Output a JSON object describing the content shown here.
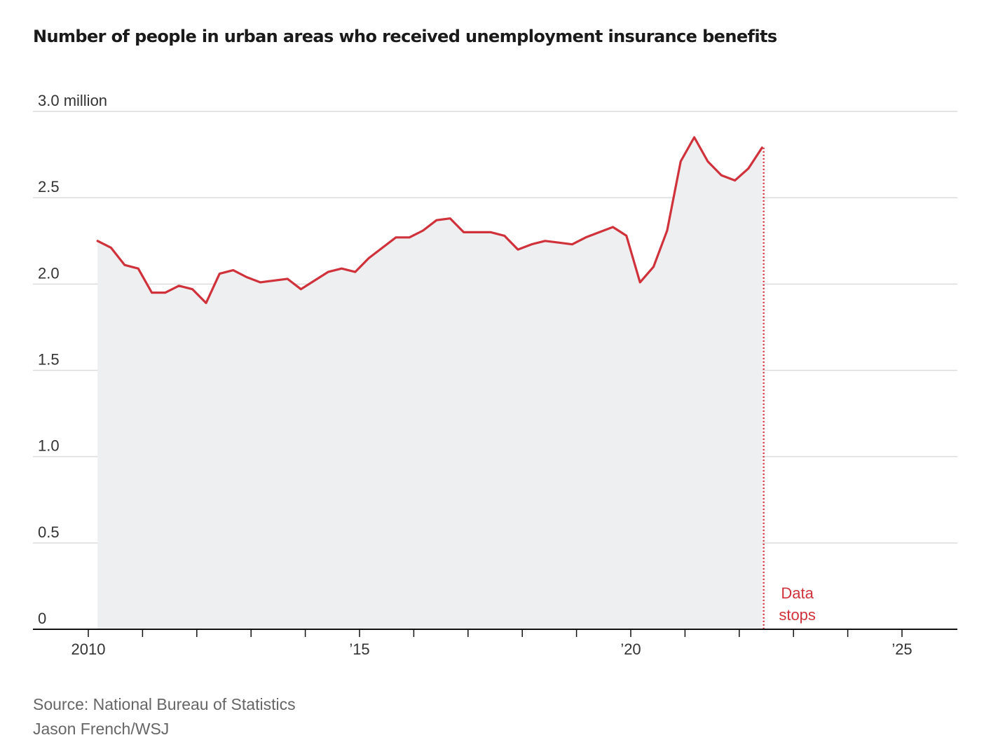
{
  "chart_data": {
    "type": "area",
    "title": "Number of people in urban areas who received unemployment insurance benefits",
    "unit": "million",
    "y_ticks": [
      {
        "value": 0,
        "label": "0"
      },
      {
        "value": 0.5,
        "label": "0.5"
      },
      {
        "value": 1.0,
        "label": "1.0"
      },
      {
        "value": 1.5,
        "label": "1.5"
      },
      {
        "value": 2.0,
        "label": "2.0"
      },
      {
        "value": 2.5,
        "label": "2.5"
      },
      {
        "value": 3.0,
        "label": "3.0 million"
      }
    ],
    "ylim": [
      0,
      3.0
    ],
    "xlim": [
      2009.0,
      2026.0
    ],
    "x_ticks": [
      {
        "value": 2010,
        "label": "2010"
      },
      {
        "value": 2015,
        "label": "’15"
      },
      {
        "value": 2020,
        "label": "’20"
      },
      {
        "value": 2025,
        "label": "’25"
      }
    ],
    "x_minor_ticks": [
      2011,
      2012,
      2013,
      2014,
      2016,
      2017,
      2018,
      2019,
      2021,
      2022,
      2023,
      2024
    ],
    "series": [
      {
        "name": "Urban unemployment insurance recipients",
        "color": "#d0323b",
        "fill": "#eeeff1",
        "x": [
          2010.17,
          2010.42,
          2010.67,
          2010.92,
          2011.17,
          2011.42,
          2011.67,
          2011.92,
          2012.17,
          2012.42,
          2012.67,
          2012.92,
          2013.17,
          2013.42,
          2013.67,
          2013.92,
          2014.17,
          2014.42,
          2014.67,
          2014.92,
          2015.17,
          2015.42,
          2015.67,
          2015.92,
          2016.17,
          2016.42,
          2016.67,
          2016.92,
          2017.17,
          2017.42,
          2017.67,
          2017.92,
          2018.17,
          2018.42,
          2018.67,
          2018.92,
          2019.17,
          2019.42,
          2019.67,
          2019.92,
          2020.17,
          2020.42,
          2020.67,
          2020.92,
          2021.17,
          2021.42,
          2021.67,
          2021.92,
          2022.17,
          2022.42
        ],
        "values": [
          2.25,
          2.21,
          2.11,
          2.09,
          1.95,
          1.95,
          1.99,
          1.97,
          1.89,
          2.06,
          2.08,
          2.04,
          2.01,
          2.02,
          2.03,
          1.97,
          2.02,
          2.07,
          2.09,
          2.07,
          2.15,
          2.21,
          2.27,
          2.27,
          2.31,
          2.37,
          2.38,
          2.3,
          2.3,
          2.3,
          2.28,
          2.2,
          2.23,
          2.25,
          2.24,
          2.23,
          2.27,
          2.3,
          2.33,
          2.28,
          2.01,
          2.1,
          2.31,
          2.71,
          2.85,
          2.71,
          2.63,
          2.6,
          2.67,
          2.79
        ]
      }
    ],
    "annotation": {
      "x": 2022.45,
      "line1": "Data",
      "line2": "stops",
      "color": "#d0323b"
    },
    "source": "Source: National Bureau of Statistics",
    "credit": "Jason French/WSJ"
  }
}
